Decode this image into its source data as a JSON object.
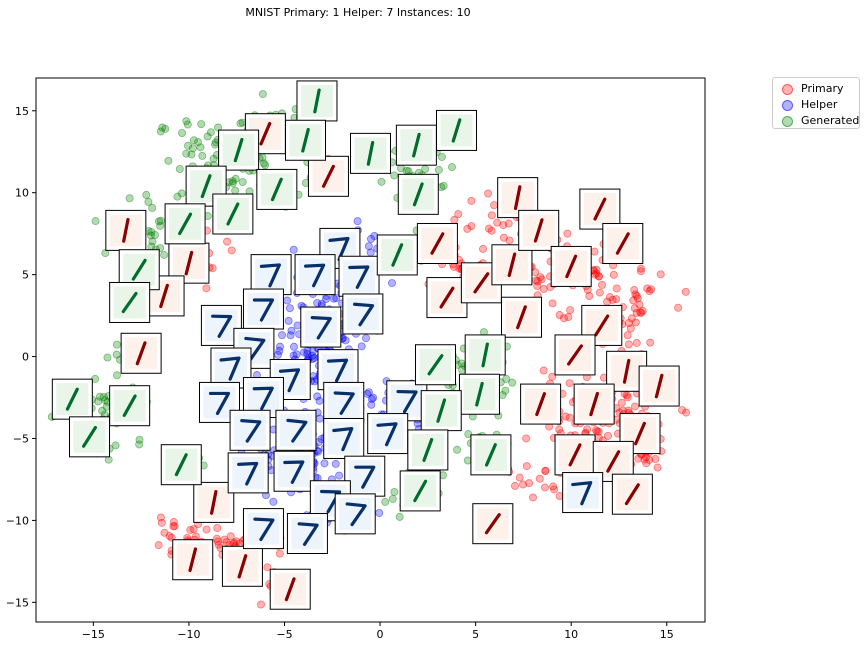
{
  "chart_data": {
    "type": "scatter",
    "title": "MNIST Primary: 1 Helper: 7 Instances: 10",
    "xlim": [
      -18,
      17
    ],
    "ylim": [
      -16.2,
      17
    ],
    "x_ticks": [
      -15,
      -10,
      -5,
      0,
      5,
      10,
      15
    ],
    "y_ticks": [
      -15,
      -10,
      -5,
      0,
      5,
      10,
      15
    ],
    "grid": false,
    "legend_position": "outside-top-right",
    "legend": [
      {
        "label": "Primary",
        "color": "#ff0000"
      },
      {
        "label": "Helper",
        "color": "#0000ff"
      },
      {
        "label": "Generated",
        "color": "#008000"
      }
    ],
    "series": [
      {
        "name": "Primary",
        "color": "#ff0000",
        "digit": "1",
        "clusters": [
          {
            "x": 9.5,
            "y": 5.5,
            "sx": 2.3,
            "sy": 1.6,
            "n": 90
          },
          {
            "x": 12.5,
            "y": 2.5,
            "sx": 1.6,
            "sy": 2.0,
            "n": 50
          },
          {
            "x": 11.5,
            "y": -3.5,
            "sx": 2.3,
            "sy": 1.6,
            "n": 110
          },
          {
            "x": 13.8,
            "y": -5.8,
            "sx": 0.8,
            "sy": 0.8,
            "n": 25
          },
          {
            "x": 6.5,
            "y": 8.0,
            "sx": 1.5,
            "sy": 1.2,
            "n": 30
          },
          {
            "x": 4.2,
            "y": 5.0,
            "sx": 1.2,
            "sy": 1.2,
            "n": 25
          },
          {
            "x": 7.5,
            "y": -7.8,
            "sx": 1.2,
            "sy": 0.8,
            "n": 15
          },
          {
            "x": -10.5,
            "y": -11.0,
            "sx": 1.3,
            "sy": 0.6,
            "n": 25
          },
          {
            "x": -7.0,
            "y": -11.5,
            "sx": 1.4,
            "sy": 0.7,
            "n": 40
          },
          {
            "x": -5.5,
            "y": -13.5,
            "sx": 0.6,
            "sy": 0.9,
            "n": 12
          },
          {
            "x": -9.0,
            "y": 6.0,
            "sx": 0.9,
            "sy": 1.0,
            "n": 12
          },
          {
            "x": -2.5,
            "y": 11.5,
            "sx": 0.7,
            "sy": 0.6,
            "n": 8
          }
        ],
        "thumbnails": [
          [
            -13.3,
            7.7
          ],
          [
            -10,
            5.7
          ],
          [
            -11.3,
            3.7
          ],
          [
            -12.5,
            0.2
          ],
          [
            -6,
            13.6
          ],
          [
            -2.7,
            11
          ],
          [
            3,
            6.9
          ],
          [
            3.5,
            3.6
          ],
          [
            5.3,
            4.5
          ],
          [
            7.2,
            9.7
          ],
          [
            6.9,
            5.6
          ],
          [
            8.3,
            7.7
          ],
          [
            7.4,
            2.4
          ],
          [
            10,
            5.5
          ],
          [
            11.5,
            9
          ],
          [
            12.7,
            6.9
          ],
          [
            11.6,
            1.9
          ],
          [
            10.2,
            0.1
          ],
          [
            12.9,
            -0.9
          ],
          [
            14.6,
            -1.8
          ],
          [
            11.2,
            -2.9
          ],
          [
            8.4,
            -2.9
          ],
          [
            13.6,
            -4.7
          ],
          [
            10.2,
            -6
          ],
          [
            12.2,
            -6.4
          ],
          [
            13.2,
            -8.4
          ],
          [
            5.9,
            -10.2
          ],
          [
            -8.7,
            -8.9
          ],
          [
            -9.8,
            -12.4
          ],
          [
            -7.2,
            -12.8
          ],
          [
            -4.7,
            -14.2
          ]
        ]
      },
      {
        "name": "Helper",
        "color": "#0000ff",
        "digit": "7",
        "clusters": [
          {
            "x": -3.0,
            "y": 1.0,
            "sx": 1.8,
            "sy": 2.6,
            "n": 180
          },
          {
            "x": -4.0,
            "y": -6.0,
            "sx": 1.6,
            "sy": 2.2,
            "n": 120
          },
          {
            "x": -1.0,
            "y": 5.5,
            "sx": 1.3,
            "sy": 1.4,
            "n": 40
          },
          {
            "x": 1.0,
            "y": -3.0,
            "sx": 1.0,
            "sy": 1.6,
            "n": 30
          },
          {
            "x": -2.5,
            "y": -9.5,
            "sx": 1.2,
            "sy": 0.8,
            "n": 25
          }
        ],
        "thumbnails": [
          [
            -2.1,
            6.6
          ],
          [
            -5.7,
            5
          ],
          [
            -3.4,
            5
          ],
          [
            -1.1,
            4.9
          ],
          [
            -6.1,
            2.9
          ],
          [
            -8.3,
            1.9
          ],
          [
            -3.1,
            1.8
          ],
          [
            -0.9,
            2.6
          ],
          [
            -6.6,
            0.5
          ],
          [
            -7.8,
            -0.7
          ],
          [
            -4.7,
            -1.4
          ],
          [
            -2.2,
            -0.8
          ],
          [
            -6.1,
            -2.5
          ],
          [
            -8.4,
            -2.8
          ],
          [
            1.4,
            -2.7
          ],
          [
            -1.9,
            -2.8
          ],
          [
            -6.8,
            -4.5
          ],
          [
            -4.4,
            -4.5
          ],
          [
            -1.9,
            -5
          ],
          [
            0.4,
            -4.7
          ],
          [
            -6.9,
            -7.1
          ],
          [
            -4.5,
            -7
          ],
          [
            -0.8,
            -7.3
          ],
          [
            -2.6,
            -8.8
          ],
          [
            -6.1,
            -10.5
          ],
          [
            -3.8,
            -10.8
          ],
          [
            -1.3,
            -9.6
          ],
          [
            10.6,
            -8.3
          ]
        ]
      },
      {
        "name": "Generated",
        "color": "#008000",
        "digit": "1",
        "clusters": [
          {
            "x": -8.0,
            "y": 12.0,
            "sx": 2.5,
            "sy": 1.8,
            "n": 80
          },
          {
            "x": -12.0,
            "y": 7.0,
            "sx": 1.5,
            "sy": 1.8,
            "n": 40
          },
          {
            "x": -14.0,
            "y": -3.5,
            "sx": 1.3,
            "sy": 1.8,
            "n": 40
          },
          {
            "x": 2.0,
            "y": 11.5,
            "sx": 1.5,
            "sy": 1.2,
            "n": 30
          },
          {
            "x": 4.8,
            "y": -1.0,
            "sx": 1.2,
            "sy": 1.8,
            "n": 50
          },
          {
            "x": 5.5,
            "y": -5.5,
            "sx": 1.0,
            "sy": 0.7,
            "n": 20
          },
          {
            "x": 1.8,
            "y": -8.0,
            "sx": 1.0,
            "sy": 1.0,
            "n": 20
          },
          {
            "x": -10.5,
            "y": -6.8,
            "sx": 0.7,
            "sy": 0.7,
            "n": 10
          },
          {
            "x": -13.5,
            "y": 0.3,
            "sx": 0.6,
            "sy": 0.5,
            "n": 8
          },
          {
            "x": -5.0,
            "y": 14.5,
            "sx": 0.7,
            "sy": 0.4,
            "n": 8
          },
          {
            "x": 2.0,
            "y": 6.5,
            "sx": 0.9,
            "sy": 0.8,
            "n": 12
          }
        ],
        "thumbnails": [
          [
            -3.3,
            15.6
          ],
          [
            -3.9,
            13.2
          ],
          [
            -7.4,
            12.6
          ],
          [
            -9.1,
            10.4
          ],
          [
            -5.4,
            10.2
          ],
          [
            -7.7,
            8.7
          ],
          [
            -10.2,
            8.1
          ],
          [
            -12.6,
            5.3
          ],
          [
            -13.1,
            3.3
          ],
          [
            -0.5,
            12.4
          ],
          [
            1.9,
            12.9
          ],
          [
            4,
            13.8
          ],
          [
            2,
            9.9
          ],
          [
            0.9,
            6.2
          ],
          [
            -16.1,
            -2.6
          ],
          [
            -13.1,
            -3
          ],
          [
            -15.2,
            -4.9
          ],
          [
            2.9,
            -0.5
          ],
          [
            5.5,
            0.1
          ],
          [
            5.2,
            -2.3
          ],
          [
            3.2,
            -3.3
          ],
          [
            2.5,
            -5.7
          ],
          [
            5.8,
            -6
          ],
          [
            -10.4,
            -6.6
          ],
          [
            2.1,
            -8.2
          ]
        ]
      }
    ]
  }
}
